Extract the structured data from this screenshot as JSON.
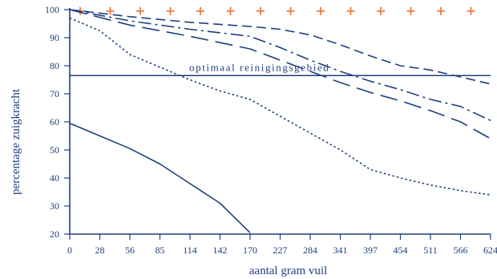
{
  "chart_data": {
    "type": "line",
    "xlabel": "aantal gram vuil",
    "ylabel": "percentage zuigkracht",
    "x_ticks": [
      "0",
      "28",
      "56",
      "85",
      "114",
      "142",
      "170",
      "227",
      "284",
      "341",
      "397",
      "454",
      "511",
      "566",
      "624"
    ],
    "x_tick_values": [
      0,
      28,
      56,
      85,
      114,
      142,
      170,
      227,
      284,
      341,
      397,
      454,
      511,
      566,
      624
    ],
    "y_ticks": [
      "20",
      "30",
      "40",
      "50",
      "60",
      "70",
      "80",
      "90",
      "100"
    ],
    "y_tick_values": [
      20,
      30,
      40,
      50,
      60,
      70,
      80,
      90,
      100
    ],
    "xlim": [
      0,
      624
    ],
    "ylim": [
      20,
      100
    ],
    "grid": false,
    "colors": {
      "axis": "#1e3f7e",
      "lines": "#1e3f7e",
      "markers": "#f07a3c"
    },
    "reference_line": {
      "y": 76.5,
      "label": "optimaal reinigingsgebied"
    },
    "series": [
      {
        "style": "plus-markers",
        "x": [
          0,
          28,
          56,
          85,
          114,
          142,
          170,
          227,
          284,
          341,
          397,
          454,
          511,
          566,
          624
        ],
        "y": [
          99.5,
          99.5,
          99.5,
          99.5,
          99.5,
          99.5,
          99.5,
          99.5,
          99.5,
          99.5,
          99.5,
          99.5,
          99.5,
          99.5,
          99.5
        ]
      },
      {
        "style": "short-dash",
        "x": [
          0,
          56,
          114,
          170,
          227,
          284,
          341,
          397,
          454,
          511,
          566,
          624
        ],
        "y": [
          100,
          97.5,
          95.5,
          94,
          93,
          91,
          87.5,
          83.5,
          80,
          78.5,
          76,
          73.5
        ]
      },
      {
        "style": "dash-dot",
        "x": [
          0,
          56,
          114,
          170,
          227,
          284,
          341,
          397,
          454,
          511,
          566,
          624
        ],
        "y": [
          100,
          96,
          93,
          90.5,
          86.5,
          82,
          78,
          74.5,
          71.5,
          68,
          65.5,
          60.5
        ]
      },
      {
        "style": "long-dash",
        "x": [
          0,
          56,
          114,
          170,
          227,
          284,
          341,
          397,
          454,
          511,
          566,
          624
        ],
        "y": [
          100,
          94.5,
          90.5,
          86,
          82,
          78,
          74,
          70.5,
          67.5,
          64,
          60,
          54
        ]
      },
      {
        "style": "dotted",
        "x": [
          0,
          28,
          56,
          85,
          114,
          142,
          170,
          227,
          284,
          341,
          397,
          454,
          511,
          566,
          624
        ],
        "y": [
          97,
          92.5,
          84,
          79.5,
          75,
          71,
          68,
          62,
          56,
          50,
          43,
          40,
          37.5,
          35.5,
          34
        ]
      },
      {
        "style": "solid",
        "x": [
          0,
          28,
          56,
          85,
          114,
          142,
          170
        ],
        "y": [
          59.5,
          55,
          50.5,
          45,
          38,
          31,
          20.5
        ]
      }
    ]
  }
}
